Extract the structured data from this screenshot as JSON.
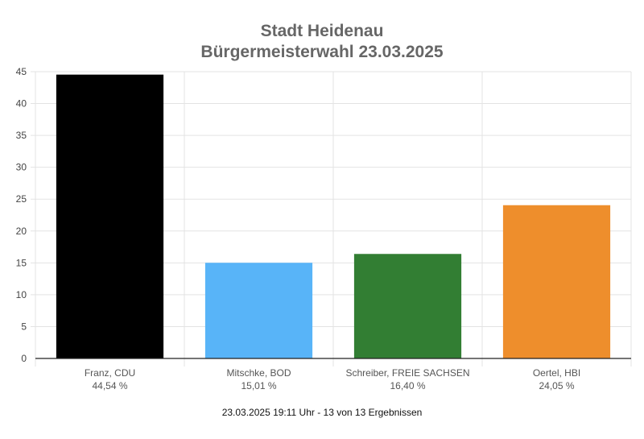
{
  "chart_data": {
    "type": "bar",
    "title": "Stadt Heidenau",
    "subtitle": "Bürgermeisterwahl 23.03.2025",
    "categories": [
      "Franz, CDU",
      "Mitschke, BOD",
      "Schreiber, FREIE SACHSEN",
      "Oertel, HBI"
    ],
    "value_labels": [
      "44,54 %",
      "15,01 %",
      "16,40 %",
      "24,05 %"
    ],
    "values": [
      44.54,
      15.01,
      16.4,
      24.05
    ],
    "colors": [
      "#000000",
      "#58b4f8",
      "#327e33",
      "#ee8e2c"
    ],
    "ylim": [
      0,
      45
    ],
    "yticks": [
      0,
      5,
      10,
      15,
      20,
      25,
      30,
      35,
      40,
      45
    ],
    "grid": true,
    "legend": "none"
  },
  "footer": {
    "status": "23.03.2025 19:11 Uhr - 13 von 13 Ergebnissen"
  }
}
